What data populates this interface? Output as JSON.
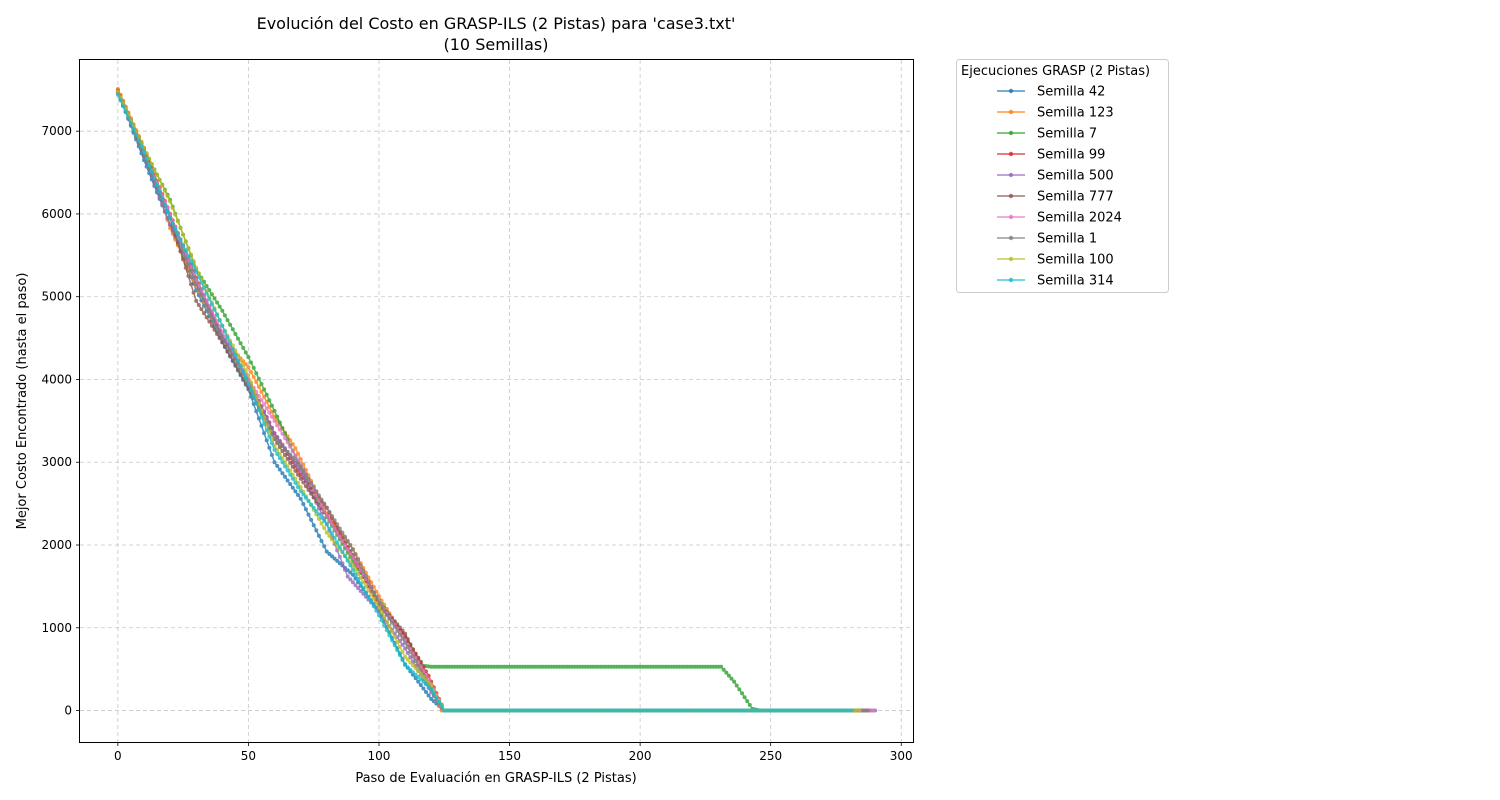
{
  "chart_data": {
    "type": "line",
    "title": "Evolución del Costo en GRASP-ILS (2 Pistas) para 'case3.txt'",
    "subtitle": "(10 Semillas)",
    "xlabel": "Paso de Evaluación en GRASP-ILS (2 Pistas)",
    "ylabel": "Mejor Costo Encontrado (hasta el paso)",
    "xlim": [
      -14.5,
      304.5
    ],
    "ylim": [
      -380,
      7860
    ],
    "xticks": [
      0,
      50,
      100,
      150,
      200,
      250,
      300
    ],
    "yticks": [
      0,
      1000,
      2000,
      3000,
      4000,
      5000,
      6000,
      7000
    ],
    "grid": true,
    "legend": {
      "title": "Ejecuciones GRASP (2 Pistas)",
      "placement": "outside-top-right"
    },
    "series": [
      {
        "name": "Semilla 42",
        "color": "#1f77b4",
        "points": [
          [
            0,
            7480
          ],
          [
            10,
            6650
          ],
          [
            20,
            5870
          ],
          [
            30,
            5080
          ],
          [
            40,
            4450
          ],
          [
            50,
            3880
          ],
          [
            60,
            3000
          ],
          [
            70,
            2560
          ],
          [
            80,
            1920
          ],
          [
            90,
            1640
          ],
          [
            100,
            1200
          ],
          [
            110,
            560
          ],
          [
            120,
            140
          ],
          [
            125,
            0
          ],
          [
            287,
            0
          ]
        ]
      },
      {
        "name": "Semilla 123",
        "color": "#ff7f0e",
        "points": [
          [
            0,
            7510
          ],
          [
            10,
            6800
          ],
          [
            20,
            5830
          ],
          [
            30,
            5130
          ],
          [
            40,
            4500
          ],
          [
            50,
            4150
          ],
          [
            60,
            3550
          ],
          [
            68,
            3170
          ],
          [
            80,
            2380
          ],
          [
            90,
            1950
          ],
          [
            100,
            1380
          ],
          [
            110,
            870
          ],
          [
            118,
            380
          ],
          [
            124,
            0
          ],
          [
            286,
            0
          ]
        ]
      },
      {
        "name": "Semilla 7",
        "color": "#2ca02c",
        "points": [
          [
            0,
            7480
          ],
          [
            10,
            6780
          ],
          [
            20,
            6170
          ],
          [
            30,
            5330
          ],
          [
            40,
            4830
          ],
          [
            50,
            4270
          ],
          [
            60,
            3620
          ],
          [
            70,
            2930
          ],
          [
            80,
            2340
          ],
          [
            90,
            1800
          ],
          [
            100,
            1330
          ],
          [
            110,
            880
          ],
          [
            117,
            540
          ],
          [
            120,
            530
          ],
          [
            231,
            530
          ],
          [
            236,
            350
          ],
          [
            243,
            20
          ],
          [
            246,
            0
          ],
          [
            282,
            0
          ]
        ]
      },
      {
        "name": "Semilla 99",
        "color": "#d62728",
        "points": [
          [
            0,
            7490
          ],
          [
            10,
            6790
          ],
          [
            20,
            6000
          ],
          [
            30,
            5230
          ],
          [
            40,
            4520
          ],
          [
            50,
            4000
          ],
          [
            60,
            3350
          ],
          [
            70,
            2850
          ],
          [
            80,
            2450
          ],
          [
            90,
            1850
          ],
          [
            100,
            1270
          ],
          [
            110,
            900
          ],
          [
            119,
            420
          ],
          [
            125,
            0
          ],
          [
            285,
            0
          ]
        ]
      },
      {
        "name": "Semilla 500",
        "color": "#9467bd",
        "points": [
          [
            0,
            7460
          ],
          [
            10,
            6700
          ],
          [
            20,
            5870
          ],
          [
            30,
            5180
          ],
          [
            40,
            4530
          ],
          [
            50,
            4000
          ],
          [
            60,
            3350
          ],
          [
            70,
            2900
          ],
          [
            80,
            2250
          ],
          [
            88,
            1620
          ],
          [
            100,
            1200
          ],
          [
            110,
            750
          ],
          [
            120,
            220
          ],
          [
            125,
            0
          ],
          [
            290,
            0
          ]
        ]
      },
      {
        "name": "Semilla 777",
        "color": "#8c564b",
        "points": [
          [
            0,
            7470
          ],
          [
            10,
            6700
          ],
          [
            20,
            5950
          ],
          [
            30,
            4950
          ],
          [
            40,
            4450
          ],
          [
            50,
            3900
          ],
          [
            60,
            3280
          ],
          [
            70,
            2800
          ],
          [
            80,
            2350
          ],
          [
            90,
            1880
          ],
          [
            100,
            1300
          ],
          [
            110,
            930
          ],
          [
            120,
            280
          ],
          [
            125,
            0
          ],
          [
            288,
            0
          ]
        ]
      },
      {
        "name": "Semilla 2024",
        "color": "#e377c2",
        "points": [
          [
            0,
            7480
          ],
          [
            10,
            6750
          ],
          [
            20,
            6000
          ],
          [
            30,
            5200
          ],
          [
            40,
            4580
          ],
          [
            50,
            4000
          ],
          [
            60,
            3500
          ],
          [
            70,
            2980
          ],
          [
            80,
            2350
          ],
          [
            90,
            1850
          ],
          [
            100,
            1320
          ],
          [
            110,
            850
          ],
          [
            120,
            320
          ],
          [
            125,
            0
          ],
          [
            289,
            0
          ]
        ]
      },
      {
        "name": "Semilla 1",
        "color": "#7f7f7f",
        "points": [
          [
            0,
            7470
          ],
          [
            10,
            6700
          ],
          [
            20,
            5960
          ],
          [
            30,
            5150
          ],
          [
            40,
            4500
          ],
          [
            50,
            3950
          ],
          [
            60,
            3300
          ],
          [
            70,
            2950
          ],
          [
            80,
            2450
          ],
          [
            90,
            1950
          ],
          [
            100,
            1300
          ],
          [
            110,
            820
          ],
          [
            120,
            260
          ],
          [
            125,
            0
          ],
          [
            287,
            0
          ]
        ]
      },
      {
        "name": "Semilla 100",
        "color": "#bcbd22",
        "points": [
          [
            0,
            7480
          ],
          [
            10,
            6800
          ],
          [
            20,
            6150
          ],
          [
            30,
            5350
          ],
          [
            40,
            4650
          ],
          [
            50,
            4050
          ],
          [
            60,
            3200
          ],
          [
            70,
            2700
          ],
          [
            80,
            2150
          ],
          [
            90,
            1750
          ],
          [
            100,
            1250
          ],
          [
            110,
            650
          ],
          [
            120,
            300
          ],
          [
            125,
            0
          ],
          [
            284,
            0
          ]
        ]
      },
      {
        "name": "Semilla 314",
        "color": "#17becf",
        "points": [
          [
            0,
            7440
          ],
          [
            10,
            6750
          ],
          [
            20,
            5950
          ],
          [
            30,
            5300
          ],
          [
            40,
            4650
          ],
          [
            50,
            3950
          ],
          [
            60,
            3150
          ],
          [
            70,
            2650
          ],
          [
            80,
            2250
          ],
          [
            90,
            1700
          ],
          [
            100,
            1150
          ],
          [
            110,
            550
          ],
          [
            120,
            260
          ],
          [
            125,
            0
          ],
          [
            281,
            0
          ]
        ]
      }
    ]
  }
}
